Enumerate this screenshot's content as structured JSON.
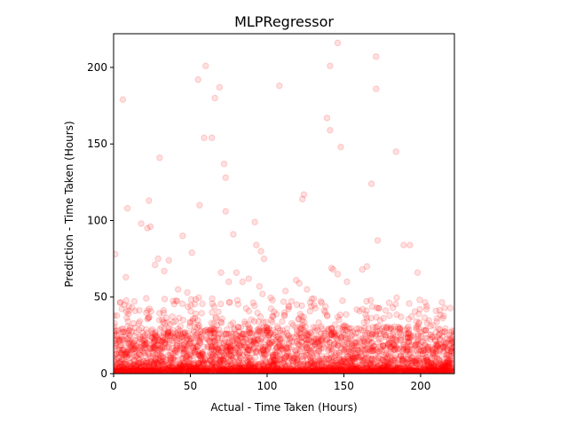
{
  "chart_data": {
    "type": "scatter",
    "title": "MLPRegressor",
    "xlabel": "Actual - Time Taken (Hours)",
    "ylabel": "Prediction - Time Taken (Hours)",
    "xlim": [
      0,
      222
    ],
    "ylim": [
      0,
      222
    ],
    "x_ticks": [
      0,
      50,
      100,
      150,
      200
    ],
    "y_ticks": [
      0,
      50,
      100,
      150,
      200
    ],
    "marker_color": "#ff0000",
    "marker_alpha": 0.1,
    "grid": false,
    "outliers": [
      [
        1,
        78
      ],
      [
        6,
        179
      ],
      [
        9,
        108
      ],
      [
        8,
        63
      ],
      [
        7,
        45
      ],
      [
        10,
        44
      ],
      [
        14,
        41
      ],
      [
        18,
        98
      ],
      [
        22,
        95
      ],
      [
        23,
        113
      ],
      [
        24,
        96
      ],
      [
        27,
        71
      ],
      [
        29,
        75
      ],
      [
        30,
        141
      ],
      [
        33,
        67
      ],
      [
        36,
        74
      ],
      [
        42,
        55
      ],
      [
        45,
        90
      ],
      [
        48,
        53
      ],
      [
        51,
        79
      ],
      [
        55,
        192
      ],
      [
        56,
        110
      ],
      [
        59,
        154
      ],
      [
        60,
        201
      ],
      [
        64,
        154
      ],
      [
        66,
        180
      ],
      [
        69,
        187
      ],
      [
        70,
        66
      ],
      [
        72,
        137
      ],
      [
        73,
        128
      ],
      [
        73,
        106
      ],
      [
        75,
        60
      ],
      [
        78,
        91
      ],
      [
        80,
        66
      ],
      [
        84,
        60
      ],
      [
        88,
        62
      ],
      [
        92,
        99
      ],
      [
        93,
        84
      ],
      [
        95,
        57
      ],
      [
        96,
        80
      ],
      [
        98,
        75
      ],
      [
        97,
        52
      ],
      [
        108,
        188
      ],
      [
        112,
        54
      ],
      [
        119,
        61
      ],
      [
        121,
        59
      ],
      [
        123,
        114
      ],
      [
        124,
        117
      ],
      [
        126,
        55
      ],
      [
        139,
        167
      ],
      [
        141,
        201
      ],
      [
        141,
        159
      ],
      [
        142,
        69
      ],
      [
        143,
        68
      ],
      [
        146,
        216
      ],
      [
        146,
        65
      ],
      [
        148,
        148
      ],
      [
        152,
        60
      ],
      [
        162,
        68
      ],
      [
        165,
        70
      ],
      [
        168,
        124
      ],
      [
        171,
        207
      ],
      [
        171,
        186
      ],
      [
        172,
        87
      ],
      [
        184,
        145
      ],
      [
        189,
        84
      ],
      [
        193,
        84
      ],
      [
        198,
        66
      ],
      [
        210,
        41
      ]
    ],
    "bulk_note_series": [
      {
        "x_range": [
          0,
          222
        ],
        "y_range": [
          0,
          50
        ]
      }
    ]
  }
}
